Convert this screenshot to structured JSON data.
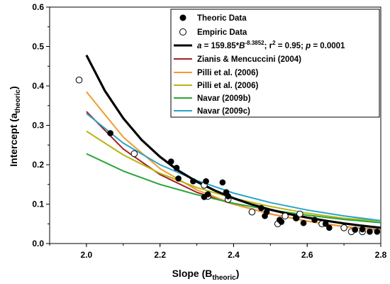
{
  "chart_data": {
    "type": "scatter",
    "title": "",
    "xlabel": {
      "main": "Slope (B",
      "sub": "theoric",
      "close": ")"
    },
    "ylabel": {
      "main": "Intercept (a",
      "sub": "theoric",
      "close": ")"
    },
    "xlim": [
      1.9,
      2.8
    ],
    "ylim": [
      0.0,
      0.6
    ],
    "xticks": [
      "2.0",
      "2.2",
      "2.4",
      "2.6",
      "2.8"
    ],
    "yticks": [
      "0.0",
      "0.1",
      "0.2",
      "0.3",
      "0.4",
      "0.5",
      "0.6"
    ],
    "grid": false,
    "legend_position": "top-right",
    "theoric_data": {
      "name": "Theoric Data",
      "points": [
        [
          2.065,
          0.28
        ],
        [
          2.23,
          0.208
        ],
        [
          2.245,
          0.192
        ],
        [
          2.25,
          0.165
        ],
        [
          2.29,
          0.158
        ],
        [
          2.32,
          0.118
        ],
        [
          2.325,
          0.158
        ],
        [
          2.33,
          0.125
        ],
        [
          2.37,
          0.155
        ],
        [
          2.38,
          0.13
        ],
        [
          2.385,
          0.12
        ],
        [
          2.475,
          0.09
        ],
        [
          2.485,
          0.07
        ],
        [
          2.49,
          0.08
        ],
        [
          2.525,
          0.06
        ],
        [
          2.53,
          0.055
        ],
        [
          2.57,
          0.065
        ],
        [
          2.59,
          0.052
        ],
        [
          2.62,
          0.06
        ],
        [
          2.65,
          0.05
        ],
        [
          2.66,
          0.04
        ],
        [
          2.73,
          0.035
        ],
        [
          2.75,
          0.036
        ],
        [
          2.77,
          0.03
        ],
        [
          2.79,
          0.03
        ]
      ]
    },
    "empiric_data": {
      "name": "Empiric Data",
      "points": [
        [
          1.98,
          0.415
        ],
        [
          2.13,
          0.228
        ],
        [
          2.32,
          0.148
        ],
        [
          2.33,
          0.12
        ],
        [
          2.385,
          0.112
        ],
        [
          2.45,
          0.08
        ],
        [
          2.52,
          0.05
        ],
        [
          2.54,
          0.07
        ],
        [
          2.57,
          0.065
        ],
        [
          2.58,
          0.075
        ],
        [
          2.64,
          0.05
        ],
        [
          2.7,
          0.04
        ],
        [
          2.72,
          0.03
        ],
        [
          2.75,
          0.03
        ]
      ]
    },
    "fit": {
      "name": "a = 159.85*B-8.3852; r2 = 0.95; p = 0.0001",
      "label_parts": {
        "a": "a",
        "eq": " = 159.85*",
        "b": "B",
        "exp": "-8.3852",
        "r": "; r",
        "r_exp": "2",
        "rest": " = 0.95; ",
        "p": "p",
        "p_rest": " = 0.0001"
      },
      "color": "#000000",
      "x": [
        2.0,
        2.05,
        2.1,
        2.15,
        2.2,
        2.25,
        2.3,
        2.35,
        2.4,
        2.45,
        2.5,
        2.55,
        2.6,
        2.65,
        2.7,
        2.75,
        2.8
      ],
      "y": [
        0.478,
        0.388,
        0.318,
        0.263,
        0.22,
        0.185,
        0.157,
        0.134,
        0.115,
        0.099,
        0.086,
        0.075,
        0.066,
        0.058,
        0.051,
        0.045,
        0.04
      ]
    },
    "series": [
      {
        "name": "Zianis & Mencuccini (2004)",
        "color": "#a31f2a",
        "x": [
          2.0,
          2.1,
          2.2,
          2.3,
          2.4,
          2.5,
          2.6,
          2.7,
          2.8
        ],
        "y": [
          0.335,
          0.24,
          0.175,
          0.13,
          0.1,
          0.075,
          0.057,
          0.043,
          0.034
        ]
      },
      {
        "name": "Pilli et al. (2006)",
        "color": "#f39a2b",
        "x": [
          2.0,
          2.1,
          2.2,
          2.3,
          2.4,
          2.5,
          2.6,
          2.7,
          2.8
        ],
        "y": [
          0.385,
          0.27,
          0.19,
          0.136,
          0.1,
          0.075,
          0.057,
          0.043,
          0.033
        ]
      },
      {
        "name": "Pilli et al. (2006)",
        "color": "#b8b412",
        "x": [
          2.0,
          2.1,
          2.2,
          2.3,
          2.4,
          2.5,
          2.6,
          2.7,
          2.8
        ],
        "y": [
          0.285,
          0.225,
          0.178,
          0.142,
          0.115,
          0.094,
          0.077,
          0.064,
          0.057
        ]
      },
      {
        "name": "Navar (2009b)",
        "color": "#2aa43a",
        "x": [
          2.0,
          2.1,
          2.2,
          2.3,
          2.4,
          2.5,
          2.6,
          2.7,
          2.8
        ],
        "y": [
          0.228,
          0.184,
          0.15,
          0.124,
          0.102,
          0.085,
          0.072,
          0.061,
          0.053
        ]
      },
      {
        "name": "Navar (2009c)",
        "color": "#2aa5c7",
        "x": [
          2.0,
          2.1,
          2.2,
          2.3,
          2.4,
          2.5,
          2.6,
          2.7,
          2.8
        ],
        "y": [
          0.33,
          0.255,
          0.2,
          0.16,
          0.128,
          0.104,
          0.085,
          0.07,
          0.058
        ]
      }
    ]
  }
}
